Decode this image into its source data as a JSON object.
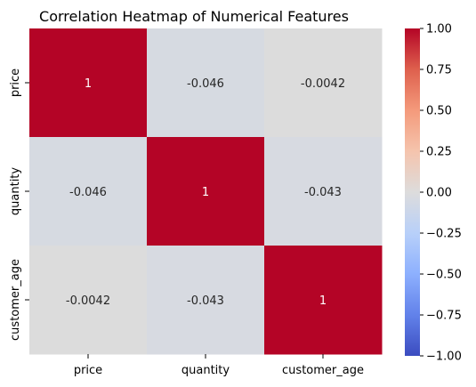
{
  "chart_data": {
    "type": "heatmap",
    "title": "Correlation Heatmap of Numerical Features",
    "rows": [
      "price",
      "quantity",
      "customer_age"
    ],
    "columns": [
      "price",
      "quantity",
      "customer_age"
    ],
    "values": [
      [
        1,
        -0.046,
        -0.0042
      ],
      [
        -0.046,
        1,
        -0.043
      ],
      [
        -0.0042,
        -0.043,
        1
      ]
    ],
    "cell_labels": [
      [
        "1",
        "-0.046",
        "-0.0042"
      ],
      [
        "-0.046",
        "1",
        "-0.043"
      ],
      [
        "-0.0042",
        "-0.043",
        "1"
      ]
    ],
    "colormap": "coolwarm",
    "vmin": -1,
    "vmax": 1,
    "colorbar_ticks": [
      1.0,
      0.75,
      0.5,
      0.25,
      0.0,
      -0.25,
      -0.5,
      -0.75,
      -1.0
    ],
    "colorbar_tick_labels": [
      "1.00",
      "0.75",
      "0.50",
      "0.25",
      "0.00",
      "−0.25",
      "−0.50",
      "−0.75",
      "−1.00"
    ],
    "colors": {
      "cell_1": "#b40426",
      "cell_neg_0046": "#d8dce2",
      "cell_neg_0043": "#d9dce1",
      "cell_neg_0004": "#dedcdb",
      "colorbar_top": "#b40426",
      "colorbar_bottom": "#3b4cc0"
    }
  }
}
